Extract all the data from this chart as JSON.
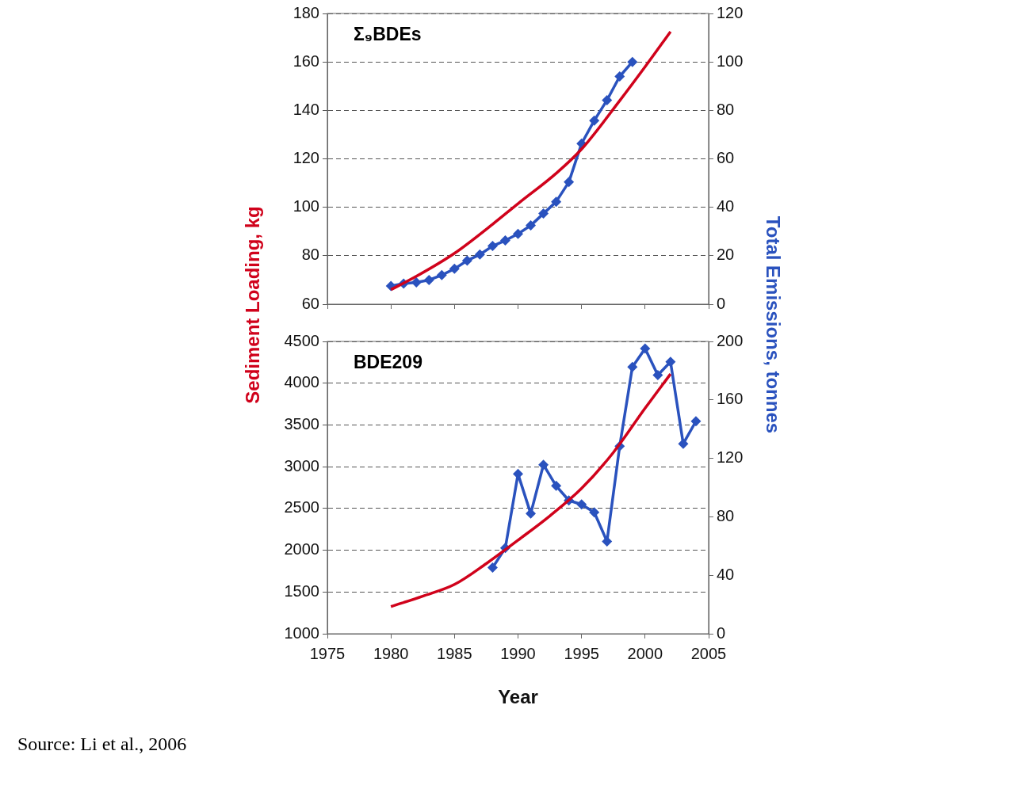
{
  "chart_data": [
    {
      "type": "line",
      "title": "Σ₉BDEs",
      "ylabel": "Sediment Loading, kg",
      "y2label": "Total Emissions, tonnes",
      "xlim": [
        1975,
        2005
      ],
      "xticks": [
        1975,
        1980,
        1985,
        1990,
        1995,
        2000,
        2005
      ],
      "ylim": [
        60,
        180
      ],
      "yticks": [
        60,
        80,
        100,
        120,
        140,
        160,
        180
      ],
      "y2lim": [
        0,
        120
      ],
      "y2ticks": [
        0,
        20,
        40,
        60,
        80,
        100,
        120
      ],
      "grid": "y",
      "legend": false,
      "tick_labels": "y",
      "series": [
        {
          "color": "#d0021b",
          "marker": "none",
          "x": [
            1980,
            1982,
            1985,
            1988,
            1990,
            1993,
            1995,
            1998,
            2000,
            2002
          ],
          "values": [
            66,
            71.5,
            81,
            93,
            101.5,
            114,
            124,
            144,
            158,
            172.5
          ]
        },
        {
          "color": "#2a52be",
          "marker": "diamond",
          "axis": "y2",
          "x": [
            1980,
            1981,
            1982,
            1983,
            1984,
            1985,
            1986,
            1987,
            1988,
            1989,
            1990,
            1991,
            1992,
            1993,
            1994,
            1995,
            1996,
            1997,
            1998,
            1999
          ],
          "values": [
            7.5,
            8.5,
            9,
            10,
            12,
            14.6,
            18,
            20.5,
            24,
            26.3,
            29,
            32.5,
            37.4,
            42.3,
            50.4,
            66.3,
            75.8,
            84.2,
            94,
            100
          ]
        }
      ]
    },
    {
      "type": "line",
      "title": "BDE209",
      "xlabel": "Year",
      "xlim": [
        1975,
        2005
      ],
      "xticks": [
        1975,
        1980,
        1985,
        1990,
        1995,
        2000,
        2005
      ],
      "ylim": [
        1000,
        4500
      ],
      "yticks": [
        1000,
        1500,
        2000,
        2500,
        3000,
        3500,
        4000,
        4500
      ],
      "y2lim": [
        0,
        200
      ],
      "y2ticks": [
        0,
        40,
        80,
        120,
        160,
        200
      ],
      "grid": "y",
      "legend": false,
      "annotations": [
        "Source: Li et al., 2006"
      ],
      "series": [
        {
          "color": "#d0021b",
          "marker": "none",
          "x": [
            1980,
            1982.5,
            1985,
            1987.5,
            1990,
            1992.5,
            1995,
            1997.5,
            2000,
            2002
          ],
          "values": [
            1325,
            1450,
            1590,
            1840,
            2120,
            2410,
            2740,
            3170,
            3700,
            4110
          ]
        },
        {
          "color": "#2a52be",
          "marker": "diamond",
          "axis": "y2",
          "x": [
            1988,
            1989,
            1990,
            1991,
            1992,
            1993,
            1994,
            1995,
            1996,
            1997,
            1998,
            1999,
            2000,
            2001,
            2002,
            2003,
            2004
          ],
          "values": [
            45.2,
            58.7,
            109.3,
            82.2,
            115.6,
            101.2,
            91.2,
            88.5,
            83.1,
            63.2,
            128.3,
            182.5,
            195.1,
            177,
            186,
            130,
            145.4
          ]
        }
      ]
    }
  ]
}
